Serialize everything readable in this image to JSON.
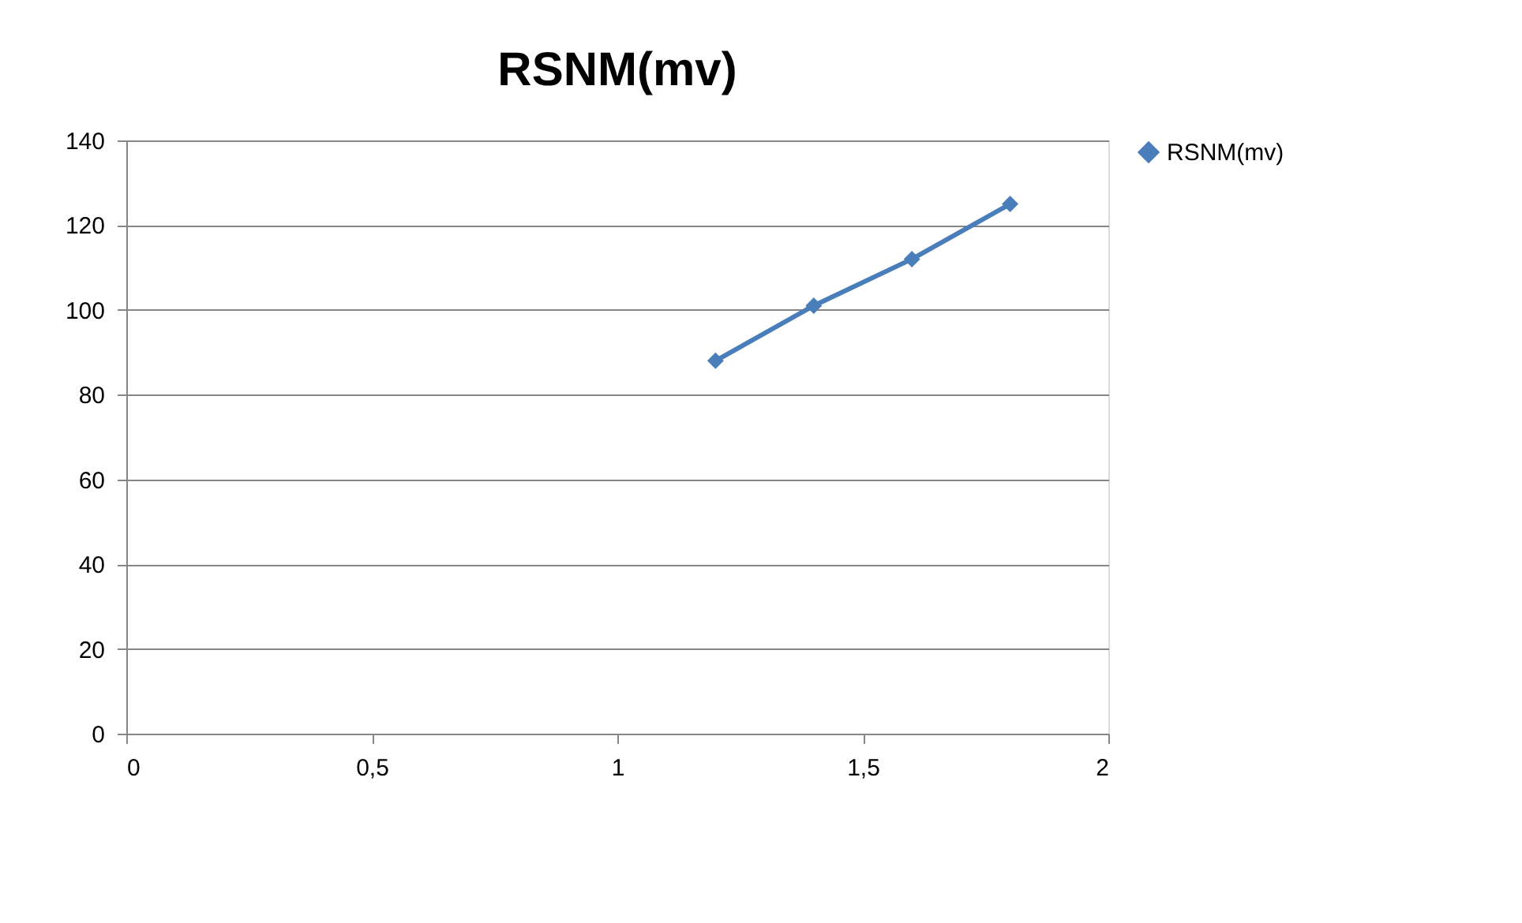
{
  "chart_data": {
    "type": "line",
    "title": "RSNM(mv)",
    "x": [
      1.2,
      1.4,
      1.6,
      1.8
    ],
    "series": [
      {
        "name": "RSNM(mv)",
        "color": "#4a7ebb",
        "values": [
          88,
          101,
          112,
          125
        ]
      }
    ],
    "xlim": [
      0,
      2
    ],
    "xticks": [
      0,
      {
        "value": 0.5,
        "label": "0,5"
      },
      1,
      {
        "value": 1.5,
        "label": "1,5"
      },
      2
    ],
    "ylim": [
      0,
      140
    ],
    "yticks": [
      0,
      20,
      40,
      60,
      80,
      100,
      120,
      140
    ],
    "grid": "y",
    "legend": "right",
    "marker": "diamond",
    "line_style": "solid"
  }
}
